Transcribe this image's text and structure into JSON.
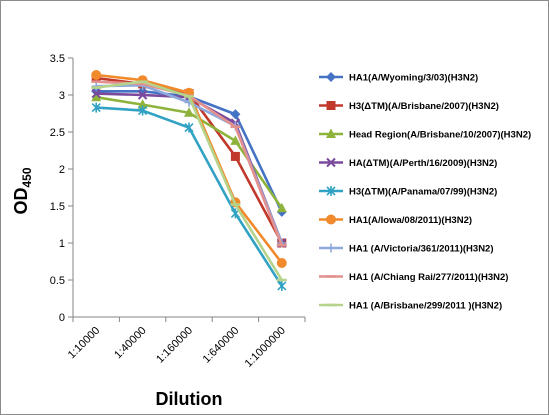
{
  "chart_data": {
    "type": "line",
    "title": "",
    "xlabel": "Dilution",
    "ylabel": "OD",
    "ylabel_subscript": "450",
    "categories": [
      "1:10000",
      "1:40000",
      "1:160000",
      "1:640000",
      "1:1000000"
    ],
    "ylim": [
      0,
      3.5
    ],
    "yticks": [
      "0",
      "0.5",
      "1",
      "1.5",
      "2",
      "2.5",
      "3",
      "3.5"
    ],
    "grid": false,
    "legend_position": "right",
    "series": [
      {
        "name": "HA1(A/Wyoming/3/03)(H3N2)",
        "color": "#4472C4",
        "marker": "diamond",
        "values": [
          3.05,
          3.05,
          2.98,
          2.74,
          1.42
        ]
      },
      {
        "name": "H3(ΔTM)(A/Brisbane/2007)(H3N2)",
        "color": "#C0392B",
        "marker": "square",
        "values": [
          3.23,
          3.15,
          3.02,
          2.17,
          1.0
        ]
      },
      {
        "name": "Head Region(A/Brisbane/10/2007)(H3N2)",
        "color": "#8DB33B",
        "marker": "triangle",
        "values": [
          2.97,
          2.87,
          2.76,
          2.38,
          1.47
        ]
      },
      {
        "name": "HA(ΔTM)(A/Perth/16/2009)(H3N2)",
        "color": "#7B4A9C",
        "marker": "x",
        "values": [
          3.02,
          3.0,
          2.97,
          2.62,
          1.0
        ]
      },
      {
        "name": "H3(ΔTM)(A/Panama/07/99)(H3N2)",
        "color": "#31A2C4",
        "marker": "star",
        "values": [
          2.83,
          2.79,
          2.56,
          1.4,
          0.42
        ]
      },
      {
        "name": "HA1(A/Iowa/08/2011)(H3N2)",
        "color": "#F08A2C",
        "marker": "circle",
        "values": [
          3.27,
          3.2,
          3.03,
          1.55,
          0.73
        ]
      },
      {
        "name": "HA1 (A/Victoria/361/2011)(H3N2)",
        "color": "#8EA9DB",
        "marker": "plus",
        "values": [
          3.12,
          3.13,
          2.9,
          2.58,
          1.0
        ]
      },
      {
        "name": "HA1 (A/Chiang Rai/277/2011)(H3N2)",
        "color": "#E3918F",
        "marker": "line",
        "values": [
          3.18,
          3.15,
          2.99,
          2.57,
          0.97
        ]
      },
      {
        "name": "HA1 (A/Brisbane/299/2011 )(H3N2)",
        "color": "#B5D38A",
        "marker": "line",
        "values": [
          3.1,
          3.18,
          2.98,
          1.52,
          0.5
        ]
      }
    ]
  }
}
